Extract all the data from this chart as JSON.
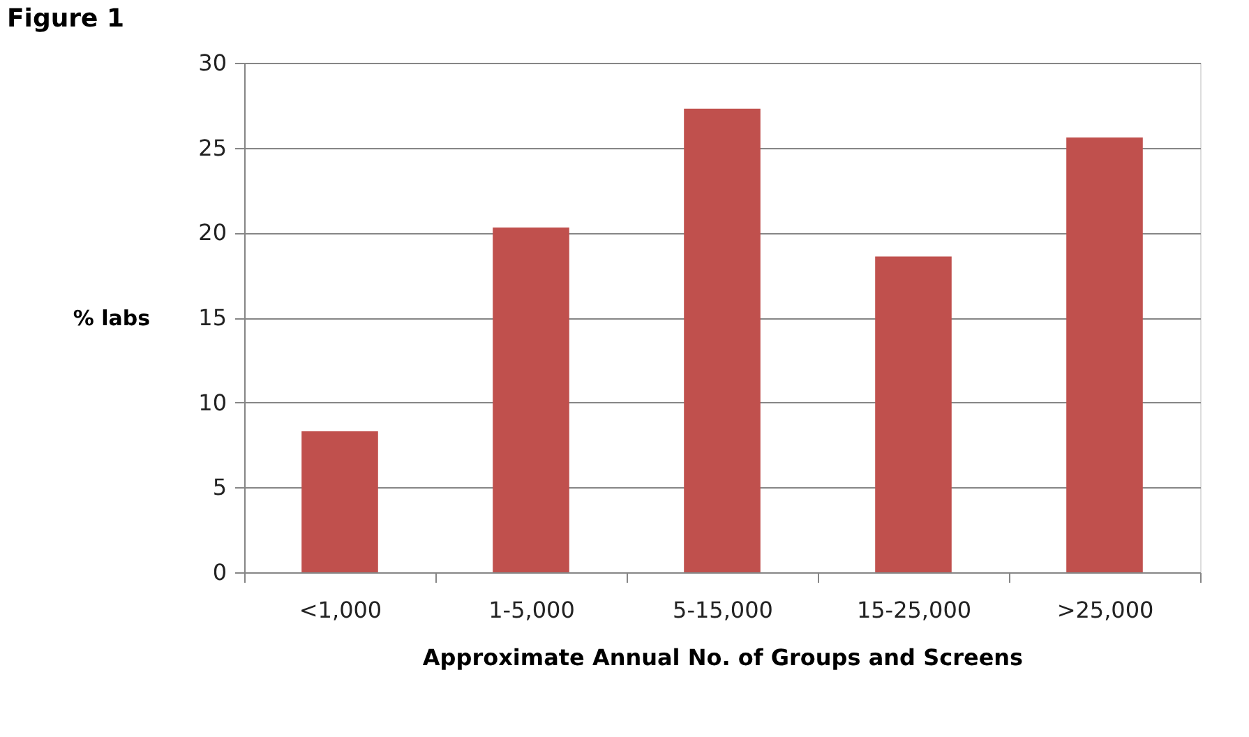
{
  "chart_data": {
    "type": "bar",
    "title": "Figure 1",
    "xlabel": "Approximate Annual No. of Groups and Screens",
    "ylabel": "% labs",
    "categories": [
      "<1,000",
      "1-5,000",
      "5-15,000",
      "15-25,000",
      ">25,000"
    ],
    "values": [
      8.3,
      20.3,
      27.3,
      18.6,
      25.6
    ],
    "color": "#c0504d",
    "ylim": [
      0,
      30
    ],
    "yticks": [
      0,
      5,
      10,
      15,
      20,
      25,
      30
    ],
    "grid": "y"
  }
}
